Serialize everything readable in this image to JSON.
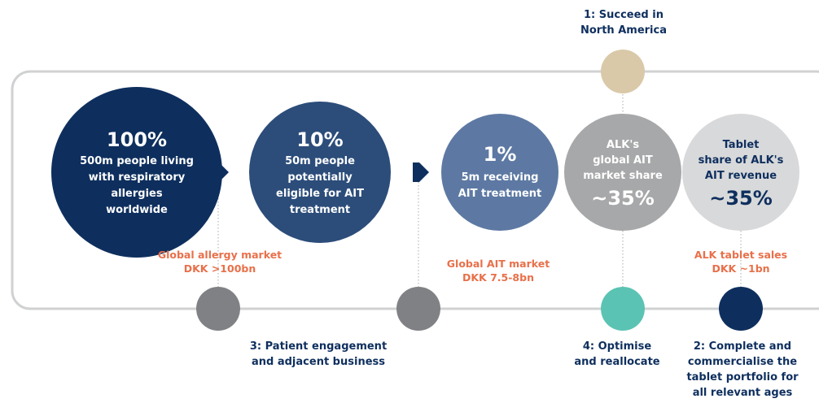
{
  "stages": [
    {
      "main": "100%",
      "desc": [
        "500m people living",
        "with respiratory",
        "allergies",
        "worldwide"
      ]
    },
    {
      "main": "10%",
      "desc": [
        "50m people",
        "potentially",
        "eligible for AIT",
        "treatment"
      ]
    },
    {
      "main": "1%",
      "desc": [
        "5m receiving",
        "AIT treatment"
      ]
    },
    {
      "main": "~35%",
      "desc": [
        "ALK's",
        "global AIT",
        "market share"
      ]
    },
    {
      "main": "~35%",
      "desc": [
        "Tablet",
        "share of ALK's",
        "AIT revenue"
      ]
    }
  ],
  "markets": [
    [
      "Global allergy market",
      "DKK >100bn"
    ],
    [
      "Global AIT market",
      "DKK 7.5-8bn"
    ],
    [
      "ALK tablet sales",
      "DKK ~1bn"
    ]
  ],
  "strategies": [
    [
      "1: Succeed in",
      "North America"
    ],
    [
      "2: Complete and",
      "commercialise the",
      "tablet portfolio for",
      "all relevant ages"
    ],
    [
      "3: Patient engagement",
      "and adjacent business"
    ],
    [
      "4: Optimise",
      "and reallocate"
    ]
  ]
}
